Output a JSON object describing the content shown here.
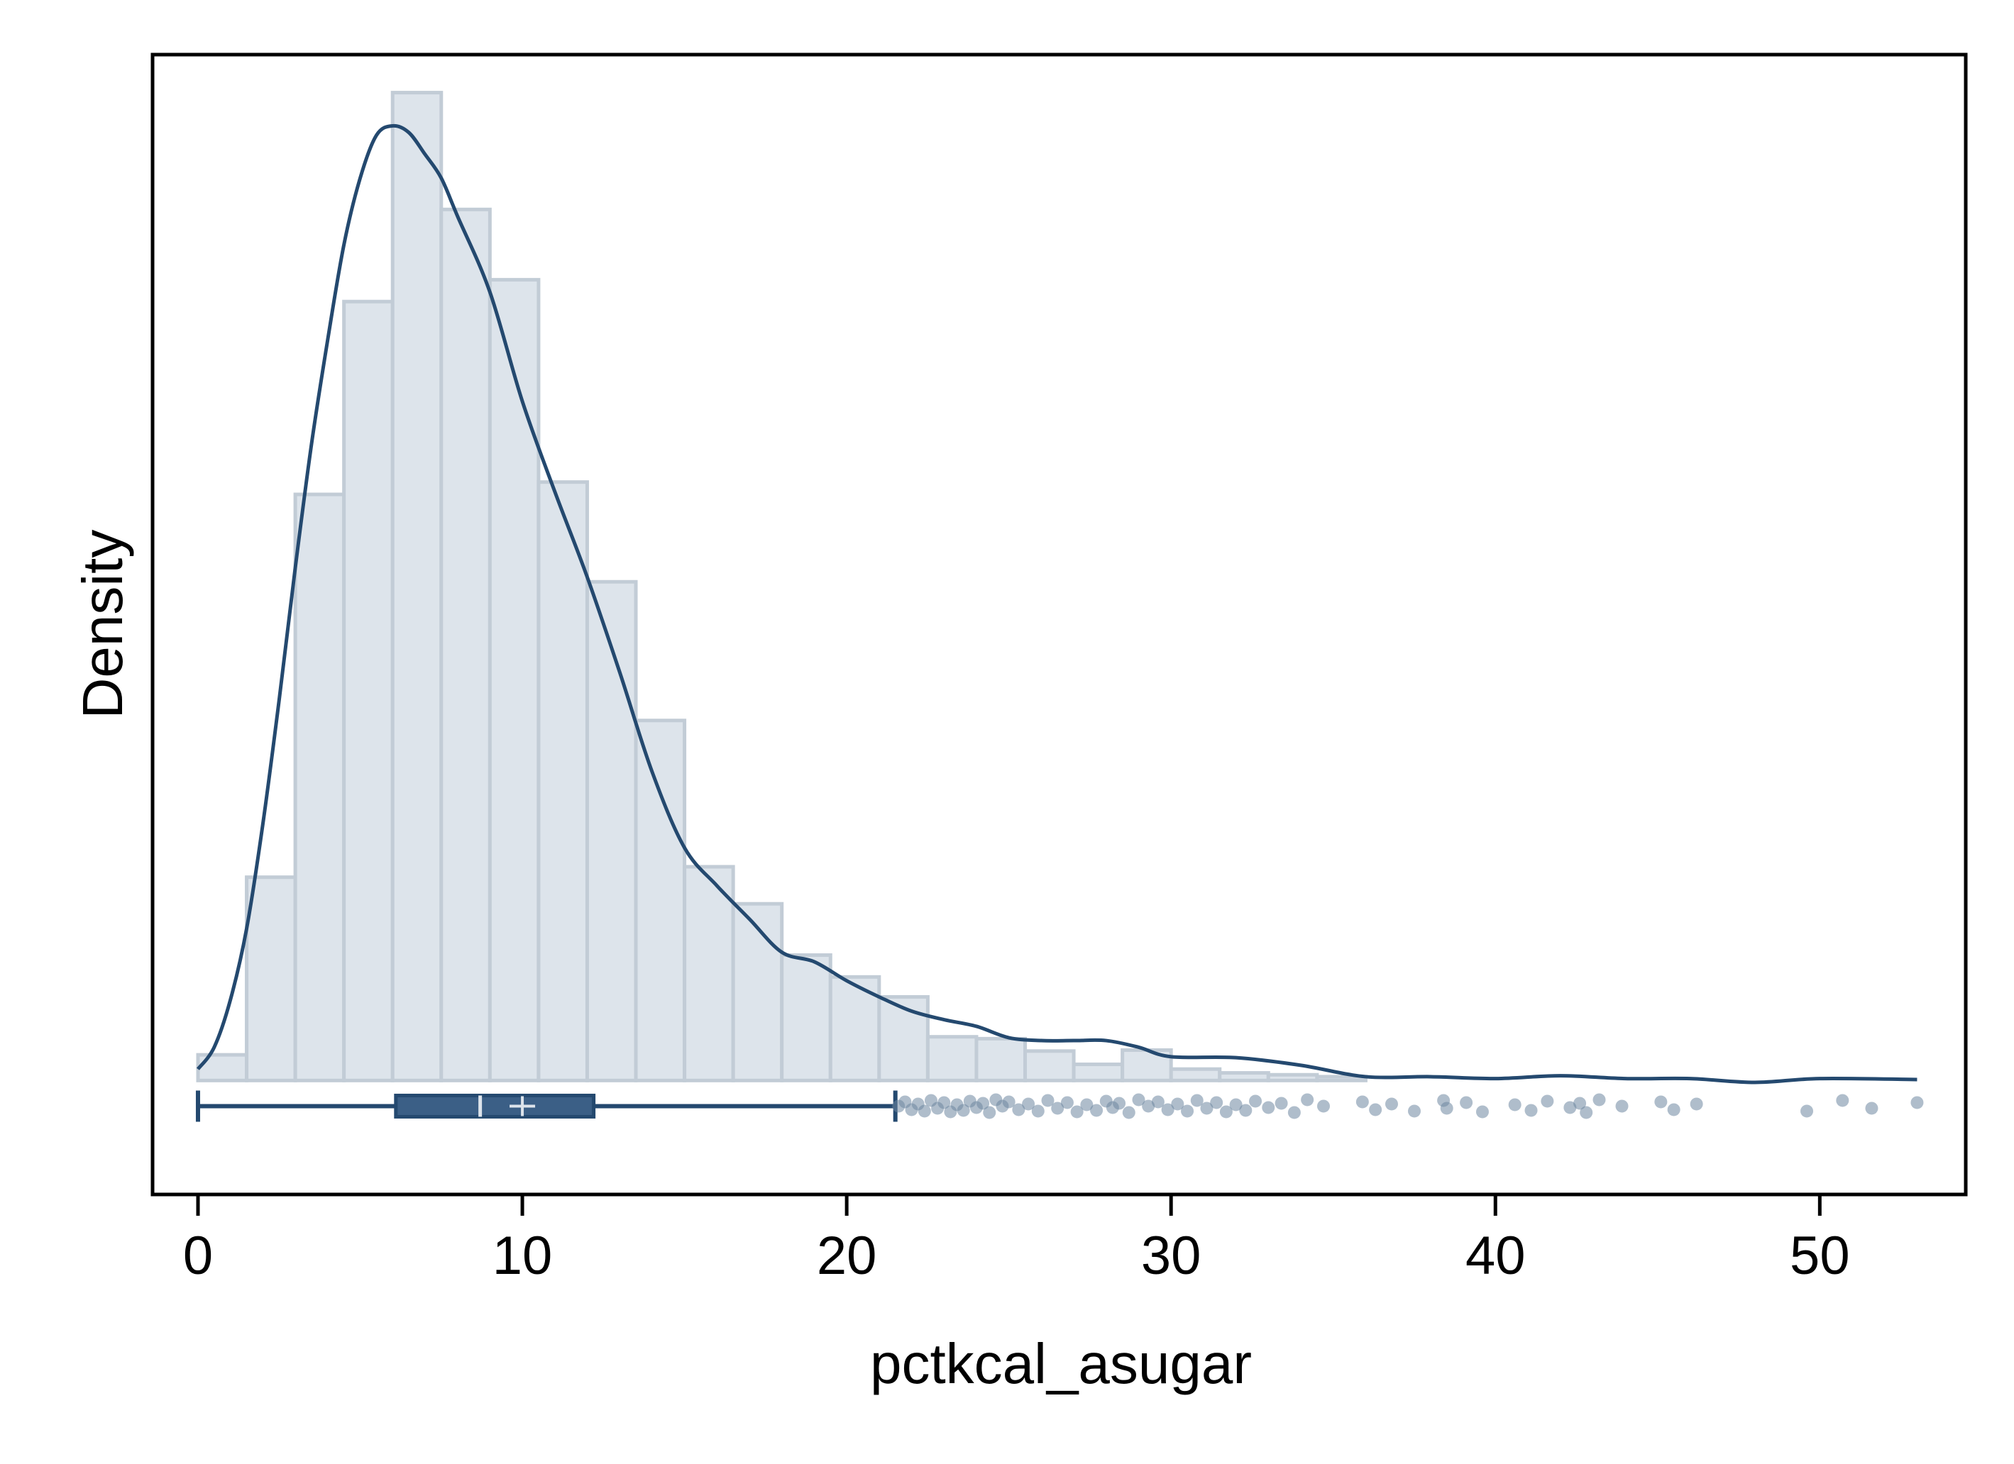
{
  "chart_data": {
    "type": "histogram",
    "title": "",
    "xlabel": "pctkcal_asugar",
    "ylabel": "Density",
    "xlim": [
      -1.4,
      54.5
    ],
    "ylim": [
      -0.012,
      0.108
    ],
    "x_ticks": [
      0,
      10,
      20,
      30,
      40,
      50
    ],
    "y_ticks_shown": false,
    "grid": false,
    "legend": "none",
    "histogram": {
      "bin_width": 1.5,
      "bin_start": 0,
      "densities": [
        0.0027,
        0.0214,
        0.0617,
        0.082,
        0.104,
        0.0917,
        0.0843,
        0.063,
        0.0525,
        0.0379,
        0.0225,
        0.0186,
        0.0132,
        0.0109,
        0.0088,
        0.0046,
        0.0044,
        0.0031,
        0.0017,
        0.0032,
        0.0012,
        0.0008,
        0.0006,
        0.0004
      ]
    },
    "kde": {
      "x": [
        0,
        0.5,
        1,
        1.5,
        2,
        2.5,
        3,
        3.5,
        4,
        4.5,
        5,
        5.5,
        6,
        6.5,
        7,
        7.5,
        8,
        9,
        10,
        11,
        12,
        13,
        14,
        15,
        16,
        17,
        18,
        19,
        20,
        21,
        22,
        23,
        24,
        25,
        26,
        27,
        28,
        29,
        30,
        32,
        34,
        36,
        38,
        40,
        42,
        44,
        46,
        48,
        50,
        53
      ],
      "y": [
        0.0012,
        0.0035,
        0.0085,
        0.016,
        0.027,
        0.04,
        0.054,
        0.067,
        0.078,
        0.088,
        0.095,
        0.0995,
        0.1005,
        0.0998,
        0.0975,
        0.095,
        0.091,
        0.083,
        0.0715,
        0.062,
        0.053,
        0.043,
        0.0325,
        0.0245,
        0.0205,
        0.017,
        0.0135,
        0.0125,
        0.0105,
        0.0088,
        0.0073,
        0.0064,
        0.0057,
        0.0045,
        0.0042,
        0.0042,
        0.0042,
        0.0035,
        0.0025,
        0.0024,
        0.0016,
        0.0004,
        0.0004,
        0.0002,
        0.0005,
        0.0002,
        0.0002,
        -0.0002,
        0.0002,
        0.0001
      ]
    },
    "boxplot": {
      "y": -0.0027,
      "whisker_low": 0,
      "q1": 6.1,
      "median": 8.7,
      "mean": 10.0,
      "q3": 12.2,
      "whisker_high": 21.5,
      "outliers": [
        21.6,
        21.8,
        22.0,
        22.2,
        22.4,
        22.6,
        22.8,
        23.0,
        23.2,
        23.4,
        23.6,
        23.8,
        24.0,
        24.2,
        24.4,
        24.6,
        24.8,
        25.0,
        25.3,
        25.6,
        25.9,
        26.2,
        26.5,
        26.8,
        27.1,
        27.4,
        27.7,
        28.0,
        28.2,
        28.4,
        28.7,
        29.0,
        29.3,
        29.6,
        29.9,
        30.2,
        30.5,
        30.8,
        31.1,
        31.4,
        31.7,
        32.0,
        32.3,
        32.6,
        33.0,
        33.4,
        33.8,
        34.2,
        34.7,
        35.9,
        36.3,
        36.8,
        37.5,
        38.4,
        38.5,
        39.1,
        39.6,
        40.6,
        41.1,
        41.6,
        42.3,
        42.6,
        42.8,
        43.2,
        43.9,
        45.1,
        45.5,
        46.2,
        49.6,
        50.7,
        51.6,
        53.0
      ]
    },
    "colors": {
      "bar_fill": "#dde4eb",
      "bar_stroke": "#c2ccd6",
      "line": "#24496f",
      "box_fill": "#3b5f86",
      "outlier": "#6d86a0",
      "frame": "#000000"
    }
  }
}
